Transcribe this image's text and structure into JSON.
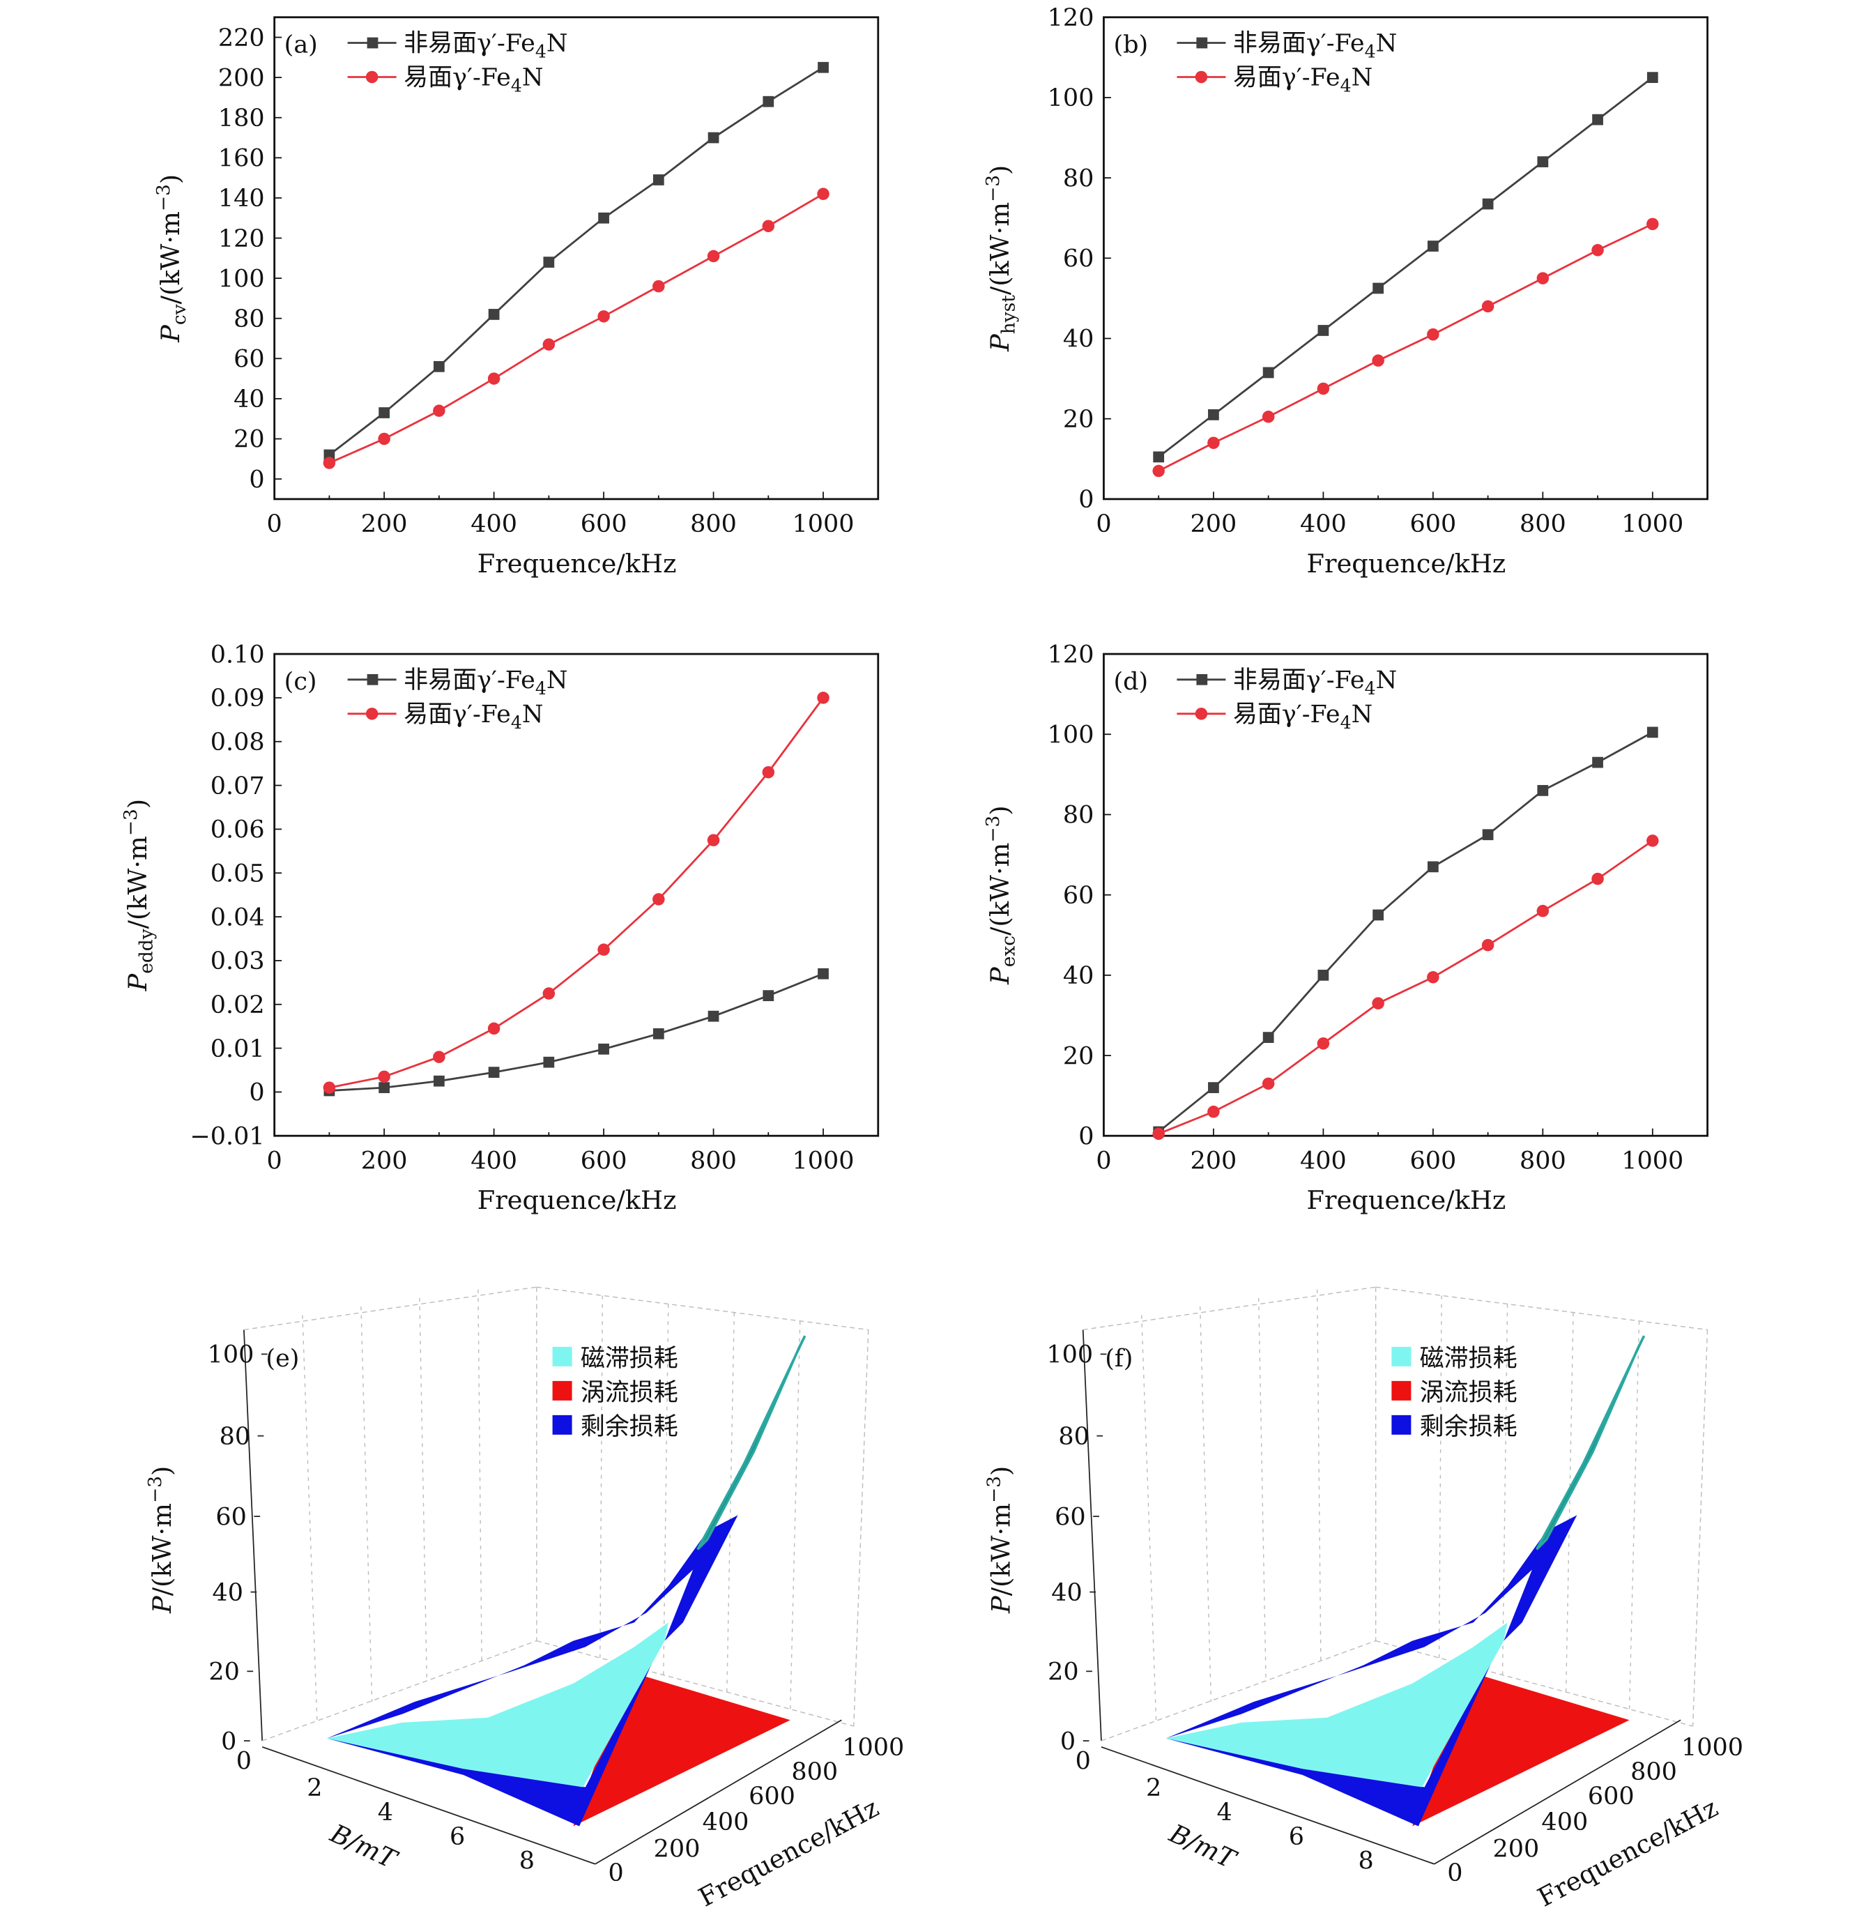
{
  "chart_data": [
    {
      "panel": "(a)",
      "type": "line",
      "xlabel": "Frequence/kHz",
      "ylabel": [
        [
          "P",
          "i"
        ],
        [
          "cv",
          "sub"
        ],
        [
          "/(kW·m",
          ""
        ],
        [
          "−3",
          "sup"
        ],
        [
          ")",
          ""
        ]
      ],
      "xlim": [
        0,
        1100
      ],
      "ylim": [
        -10,
        230
      ],
      "xticks": [
        "0",
        "200",
        "400",
        "600",
        "800",
        "1000"
      ],
      "yticks": [
        "0",
        "20",
        "40",
        "60",
        "80",
        "100",
        "120",
        "140",
        "160",
        "180",
        "200",
        "220"
      ],
      "x": [
        100,
        200,
        300,
        400,
        500,
        600,
        700,
        800,
        900,
        1000
      ],
      "series": [
        {
          "name": [
            [
              "非易面γ′-Fe",
              ""
            ],
            [
              "4",
              "sub"
            ],
            [
              "N",
              ""
            ]
          ],
          "marker": "square",
          "color": "#404040",
          "values": [
            12,
            33,
            56,
            82,
            108,
            130,
            149,
            170,
            188,
            205
          ]
        },
        {
          "name": [
            [
              "易面γ′-Fe",
              ""
            ],
            [
              "4",
              "sub"
            ],
            [
              "N",
              ""
            ]
          ],
          "marker": "circle",
          "color": "#e8323c",
          "values": [
            8,
            20,
            34,
            50,
            67,
            81,
            96,
            111,
            126,
            142
          ]
        }
      ]
    },
    {
      "panel": "(b)",
      "type": "line",
      "xlabel": "Frequence/kHz",
      "ylabel": [
        [
          "P",
          "i"
        ],
        [
          "hyst",
          "sub"
        ],
        [
          "/(kW·m",
          ""
        ],
        [
          "−3",
          "sup"
        ],
        [
          ")",
          ""
        ]
      ],
      "xlim": [
        0,
        1100
      ],
      "ylim": [
        0,
        120
      ],
      "xticks": [
        "0",
        "200",
        "400",
        "600",
        "800",
        "1000"
      ],
      "yticks": [
        "0",
        "20",
        "40",
        "60",
        "80",
        "100",
        "120"
      ],
      "x": [
        100,
        200,
        300,
        400,
        500,
        600,
        700,
        800,
        900,
        1000
      ],
      "series": [
        {
          "name": [
            [
              "非易面γ′-Fe",
              ""
            ],
            [
              "4",
              "sub"
            ],
            [
              "N",
              ""
            ]
          ],
          "marker": "square",
          "color": "#404040",
          "values": [
            10.5,
            21,
            31.5,
            42,
            52.5,
            63,
            73.5,
            84,
            94.5,
            105
          ]
        },
        {
          "name": [
            [
              "易面γ′-Fe",
              ""
            ],
            [
              "4",
              "sub"
            ],
            [
              "N",
              ""
            ]
          ],
          "marker": "circle",
          "color": "#e8323c",
          "values": [
            7,
            14,
            20.5,
            27.5,
            34.5,
            41,
            48,
            55,
            62,
            68.5
          ]
        }
      ]
    },
    {
      "panel": "(c)",
      "type": "line",
      "xlabel": "Frequence/kHz",
      "ylabel": [
        [
          "P",
          "i"
        ],
        [
          "eddy",
          "sub"
        ],
        [
          "/(kW·m",
          ""
        ],
        [
          "−3",
          "sup"
        ],
        [
          ")",
          ""
        ]
      ],
      "xlim": [
        0,
        1100
      ],
      "ylim": [
        -0.01,
        0.1
      ],
      "xticks": [
        "0",
        "200",
        "400",
        "600",
        "800",
        "1000"
      ],
      "yticks": [
        "−0.01",
        "0",
        "0.01",
        "0.02",
        "0.03",
        "0.04",
        "0.05",
        "0.06",
        "0.07",
        "0.08",
        "0.09",
        "0.10"
      ],
      "x": [
        100,
        200,
        300,
        400,
        500,
        600,
        700,
        800,
        900,
        1000
      ],
      "series": [
        {
          "name": [
            [
              "非易面γ′-Fe",
              ""
            ],
            [
              "4",
              "sub"
            ],
            [
              "N",
              ""
            ]
          ],
          "marker": "square",
          "color": "#404040",
          "values": [
            0.0003,
            0.001,
            0.0025,
            0.0045,
            0.0068,
            0.0098,
            0.0133,
            0.0173,
            0.022,
            0.027
          ]
        },
        {
          "name": [
            [
              "易面γ′-Fe",
              ""
            ],
            [
              "4",
              "sub"
            ],
            [
              "N",
              ""
            ]
          ],
          "marker": "circle",
          "color": "#e8323c",
          "values": [
            0.001,
            0.0035,
            0.008,
            0.0145,
            0.0225,
            0.0325,
            0.044,
            0.0575,
            0.073,
            0.09
          ]
        }
      ]
    },
    {
      "panel": "(d)",
      "type": "line",
      "xlabel": "Frequence/kHz",
      "ylabel": [
        [
          "P",
          "i"
        ],
        [
          "exc",
          "sub"
        ],
        [
          "/(kW·m",
          ""
        ],
        [
          "−3",
          "sup"
        ],
        [
          ")",
          ""
        ]
      ],
      "xlim": [
        0,
        1100
      ],
      "ylim": [
        0,
        120
      ],
      "xticks": [
        "0",
        "200",
        "400",
        "600",
        "800",
        "1000"
      ],
      "yticks": [
        "0",
        "20",
        "40",
        "60",
        "80",
        "100",
        "120"
      ],
      "x": [
        100,
        200,
        300,
        400,
        500,
        600,
        700,
        800,
        900,
        1000
      ],
      "series": [
        {
          "name": [
            [
              "非易面γ′-Fe",
              ""
            ],
            [
              "4",
              "sub"
            ],
            [
              "N",
              ""
            ]
          ],
          "marker": "square",
          "color": "#404040",
          "values": [
            1,
            12,
            24.5,
            40,
            55,
            67,
            75,
            86,
            93,
            100.5
          ]
        },
        {
          "name": [
            [
              "易面γ′-Fe",
              ""
            ],
            [
              "4",
              "sub"
            ],
            [
              "N",
              ""
            ]
          ],
          "marker": "circle",
          "color": "#e8323c",
          "values": [
            0.5,
            6,
            13,
            23,
            33,
            39.5,
            47.5,
            56,
            64,
            73.5
          ]
        }
      ]
    },
    {
      "panel": "(e)",
      "type": "surface",
      "xlabel": "B/mT",
      "ylabel": "Frequence/kHz",
      "zlabel": [
        [
          "P",
          "i"
        ],
        [
          "/(kW·m",
          ""
        ],
        [
          "−3",
          "sup"
        ],
        [
          ")",
          ""
        ]
      ],
      "xticks": [
        "0",
        "2",
        "4",
        "6",
        "8"
      ],
      "yticks": [
        "0",
        "200",
        "400",
        "600",
        "800",
        "1000"
      ],
      "zticks": [
        "0",
        "20",
        "40",
        "60",
        "80",
        "100"
      ],
      "legend": [
        {
          "name": "磁滞损耗",
          "color": "#7ff5f0"
        },
        {
          "name": "涡流损耗",
          "color": "#ee1111"
        },
        {
          "name": "剩余损耗",
          "color": "#0d10e0"
        }
      ]
    },
    {
      "panel": "(f)",
      "type": "surface",
      "xlabel": "B/mT",
      "ylabel": "Frequence/kHz",
      "zlabel": [
        [
          "P",
          "i"
        ],
        [
          "/(kW·m",
          ""
        ],
        [
          "−3",
          "sup"
        ],
        [
          ")",
          ""
        ]
      ],
      "xticks": [
        "0",
        "2",
        "4",
        "6",
        "8"
      ],
      "yticks": [
        "0",
        "200",
        "400",
        "600",
        "800",
        "1000"
      ],
      "zticks": [
        "0",
        "20",
        "40",
        "60",
        "80",
        "100"
      ],
      "legend": [
        {
          "name": "磁滞损耗",
          "color": "#7ff5f0"
        },
        {
          "name": "涡流损耗",
          "color": "#ee1111"
        },
        {
          "name": "剩余损耗",
          "color": "#0d10e0"
        }
      ]
    }
  ]
}
